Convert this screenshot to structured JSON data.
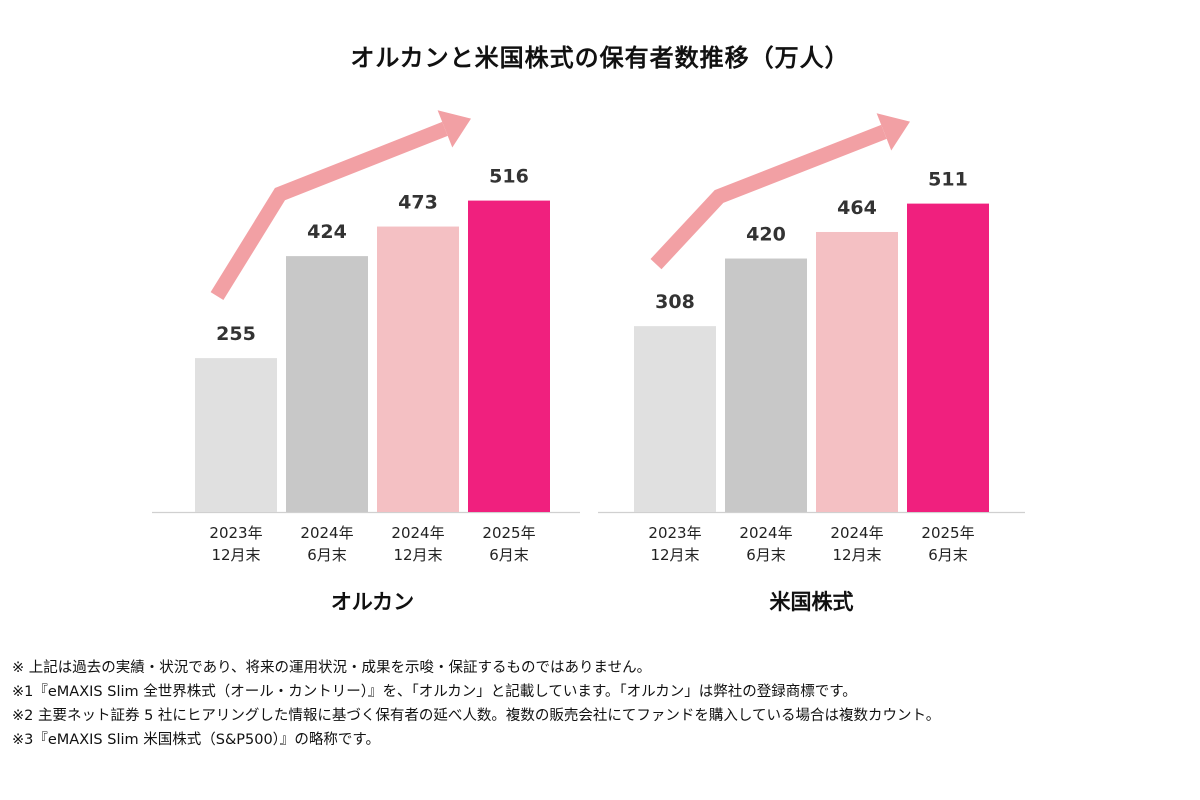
{
  "title": "オルカンと米国株式の保有者数推移（万人）",
  "chart_data": [
    {
      "type": "bar",
      "group_label": "オルカン",
      "categories": [
        [
          "2023年",
          "12月末"
        ],
        [
          "2024年",
          "6月末"
        ],
        [
          "2024年",
          "12月末"
        ],
        [
          "2025年",
          "6月末"
        ]
      ],
      "values": [
        255,
        424,
        473,
        516
      ],
      "value_labels": [
        "255",
        "424",
        "473",
        "516"
      ],
      "bar_colors": [
        "#e0e0e0",
        "#c8c8c8",
        "#f4c0c3",
        "#f0207e"
      ],
      "ylim": [
        0,
        560
      ],
      "grid": false,
      "trend_arrow_color": "#f2a0a4"
    },
    {
      "type": "bar",
      "group_label": "米国株式",
      "categories": [
        [
          "2023年",
          "12月末"
        ],
        [
          "2024年",
          "6月末"
        ],
        [
          "2024年",
          "12月末"
        ],
        [
          "2025年",
          "6月末"
        ]
      ],
      "values": [
        308,
        420,
        464,
        511
      ],
      "value_labels": [
        "308",
        "420",
        "464",
        "511"
      ],
      "bar_colors": [
        "#e0e0e0",
        "#c8c8c8",
        "#f4c0c3",
        "#f0207e"
      ],
      "ylim": [
        0,
        560
      ],
      "grid": false,
      "trend_arrow_color": "#f2a0a4"
    }
  ],
  "notes": [
    "※ 上記は過去の実績・状況であり、将来の運用状況・成果を示唆・保証するものではありません。",
    "※1『eMAXIS Slim 全世界株式（オール・カントリー）』を、「オルカン」と記載しています。「オルカン」は弊社の登録商標です。",
    "※2 主要ネット証券 5 社にヒアリングした情報に基づく保有者の延べ人数。複数の販売会社にてファンドを購入している場合は複数カウント。",
    "※3『eMAXIS Slim 米国株式（S&P500）』の略称です。"
  ]
}
